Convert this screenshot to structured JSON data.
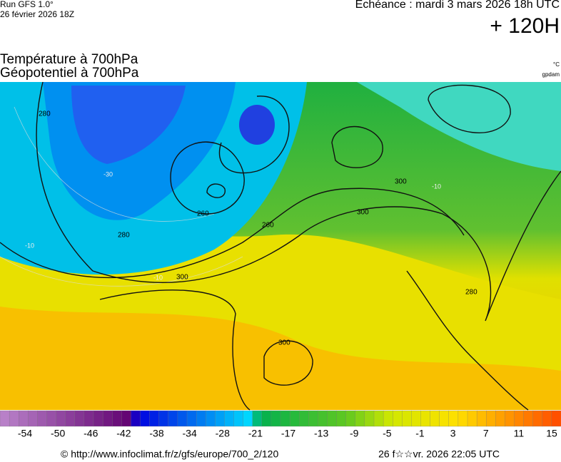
{
  "header": {
    "run": "Run GFS 1.0°",
    "date": "26 février 2026 18Z",
    "echeance": "Echéance : mardi 3 mars 2026 18h UTC",
    "lead": "+ 120H",
    "title_line1": "Température à 700hPa",
    "title_line2": "Géopotentiel à 700hPa",
    "unit_temp": "°C",
    "unit_geo": "gpdam"
  },
  "map": {
    "contour_labels": [
      "280",
      "260",
      "260",
      "280",
      "300",
      "300",
      "300",
      "300",
      "280",
      "-30",
      "-10",
      "-10",
      "-10"
    ]
  },
  "colorbar": {
    "labels": [
      -54,
      -50,
      -46,
      -42,
      -38,
      -34,
      -28,
      -21,
      -17,
      -13,
      -9,
      -5,
      -1,
      3,
      7,
      11,
      15
    ]
  },
  "footer": {
    "url": "© http://www.infoclimat.fr/z/gfs/europe/700_2/120",
    "generated": "26 f☆☆vr. 2026 22:05 UTC"
  }
}
